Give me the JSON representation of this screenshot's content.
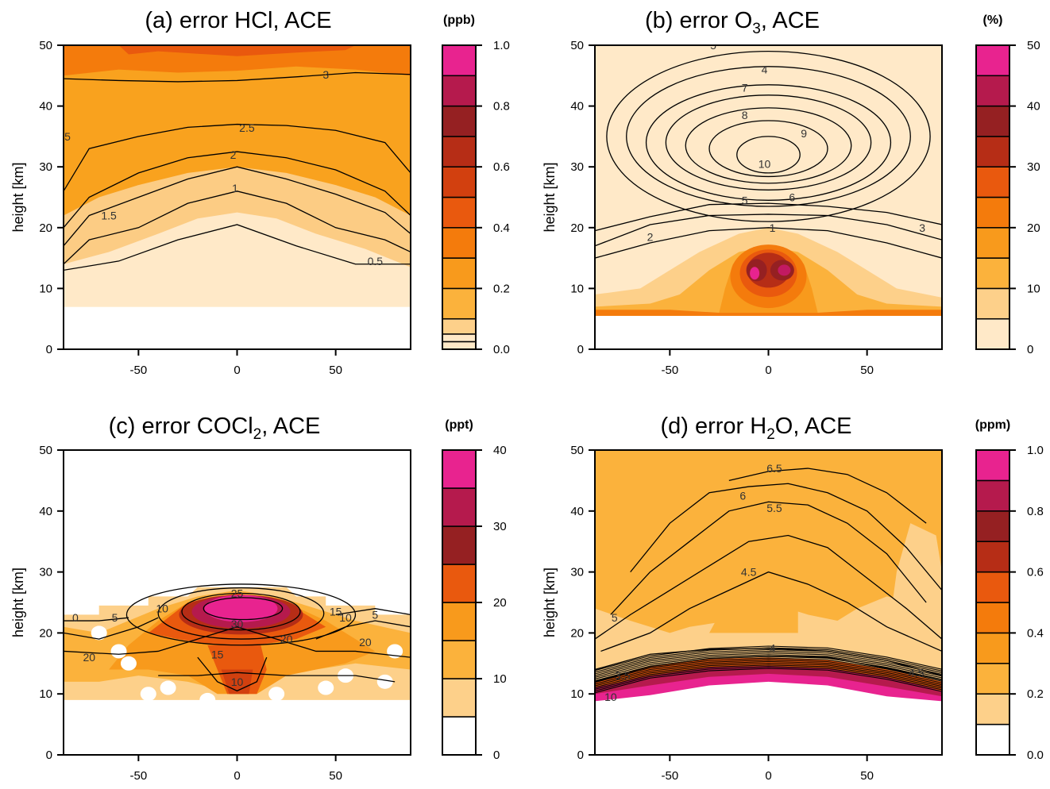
{
  "palette": {
    "seq10": [
      "#ffffff",
      "#fee7c6",
      "#fdd08a",
      "#fbb23c",
      "#f89a1c",
      "#f47b0c",
      "#e9590e",
      "#d2400f",
      "#b62d16",
      "#952022",
      "#b51a4d",
      "#e8238f"
    ],
    "pink": "#ec2a95",
    "magenta": "#c21a62",
    "maroon": "#8d1b24",
    "contour": "#000000"
  },
  "chart_data": [
    {
      "id": "a",
      "type": "heatmap",
      "title": "(a) error HCl, ACE",
      "title_html": [
        "(a) error HCl, ACE"
      ],
      "ylabel": "height [km]",
      "xlabel": "",
      "x_ticks": [
        -50,
        0,
        50
      ],
      "y_ticks": [
        0,
        10,
        20,
        30,
        40,
        50
      ],
      "xlim": [
        -88,
        88
      ],
      "ylim": [
        0,
        50
      ],
      "colorbar": {
        "unit": "(ppb)",
        "tick_labels": [
          "0.0",
          "0.2",
          "0.4",
          "0.6",
          "0.8",
          "1.0"
        ],
        "tick_values": [
          0,
          0.2,
          0.4,
          0.6,
          0.8,
          1.0
        ],
        "levels": [
          0,
          0.025,
          0.05,
          0.1,
          0.2,
          0.3,
          0.4,
          0.5,
          0.6,
          0.7,
          0.8,
          0.9,
          1.0
        ],
        "colors": [
          "#ffe9c8",
          "#ffe9c8",
          "#fdd08a",
          "#fbb23c",
          "#f89a1c",
          "#f47b0c",
          "#e9590e",
          "#d2400f",
          "#b62d16",
          "#952022",
          "#b51a4d",
          "#e8238f"
        ]
      },
      "contour_labels": [
        "3",
        "2.5",
        "2",
        "1",
        "1.5",
        "0.5",
        "5"
      ],
      "fields": [
        {
          "value": 0.05,
          "note": "low layer",
          "top": [
            [
              -88,
              7
            ],
            [
              -88,
              14
            ],
            [
              -60,
              17
            ],
            [
              -30,
              20
            ],
            [
              0,
              22
            ],
            [
              30,
              20
            ],
            [
              60,
              17
            ],
            [
              88,
              13
            ],
            [
              88,
              7
            ]
          ]
        },
        {
          "value": 0.15,
          "top_km": 27
        },
        {
          "value": 0.3,
          "top_km": 50
        },
        {
          "value": 0.4,
          "band": [
            45,
            50
          ]
        }
      ],
      "contours": [
        {
          "label": "3",
          "pts": [
            [
              -88,
              44.5
            ],
            [
              -60,
              44.2
            ],
            [
              -30,
              44.0
            ],
            [
              0,
              44.2
            ],
            [
              30,
              44.8
            ],
            [
              60,
              45.5
            ],
            [
              88,
              45.2
            ]
          ]
        },
        {
          "label": "2.5",
          "pts": [
            [
              -88,
              26
            ],
            [
              -75,
              33
            ],
            [
              -50,
              35
            ],
            [
              -25,
              36.5
            ],
            [
              0,
              37
            ],
            [
              25,
              36.8
            ],
            [
              50,
              36
            ],
            [
              75,
              34
            ],
            [
              88,
              29
            ]
          ]
        },
        {
          "label": "2",
          "pts": [
            [
              -88,
              20
            ],
            [
              -75,
              25
            ],
            [
              -50,
              29
            ],
            [
              -25,
              31.5
            ],
            [
              0,
              32.5
            ],
            [
              25,
              31.5
            ],
            [
              50,
              29.5
            ],
            [
              75,
              26
            ],
            [
              88,
              22
            ]
          ]
        },
        {
          "label": "1.5",
          "pts": [
            [
              -88,
              17
            ],
            [
              -75,
              22
            ],
            [
              -50,
              25
            ],
            [
              -25,
              28
            ],
            [
              0,
              30
            ],
            [
              25,
              28
            ],
            [
              50,
              25.5
            ],
            [
              75,
              22.5
            ],
            [
              88,
              19
            ]
          ]
        },
        {
          "label": "1",
          "pts": [
            [
              -88,
              14
            ],
            [
              -75,
              18
            ],
            [
              -50,
              20
            ],
            [
              -25,
              24
            ],
            [
              0,
              26
            ],
            [
              25,
              24
            ],
            [
              50,
              20
            ],
            [
              75,
              18
            ],
            [
              88,
              16
            ]
          ]
        },
        {
          "label": "0.5",
          "pts": [
            [
              -88,
              13
            ],
            [
              -60,
              14.5
            ],
            [
              -30,
              18
            ],
            [
              0,
              20.5
            ],
            [
              30,
              17
            ],
            [
              60,
              14
            ],
            [
              88,
              14
            ]
          ]
        }
      ]
    },
    {
      "id": "b",
      "type": "heatmap",
      "title": "(b) error O3, ACE",
      "title_html": [
        "(b) error O",
        "3",
        ", ACE"
      ],
      "ylabel": "height [km]",
      "xlabel": "",
      "x_ticks": [
        -50,
        0,
        50
      ],
      "y_ticks": [
        0,
        10,
        20,
        30,
        40,
        50
      ],
      "xlim": [
        -88,
        88
      ],
      "ylim": [
        0,
        50
      ],
      "colorbar": {
        "unit": "(%)",
        "tick_labels": [
          "0",
          "10",
          "20",
          "30",
          "40",
          "50"
        ],
        "tick_values": [
          0,
          10,
          20,
          30,
          40,
          50
        ],
        "levels": [
          0,
          5,
          10,
          15,
          20,
          25,
          30,
          35,
          40,
          45,
          50
        ],
        "colors": [
          "#ffe9c8",
          "#fdd08a",
          "#fbb23c",
          "#f89a1c",
          "#f47b0c",
          "#e9590e",
          "#b62d16",
          "#952022",
          "#b51a4d",
          "#e8238f"
        ]
      },
      "contour_labels": [
        "5",
        "4",
        "7",
        "8",
        "9",
        "10",
        "6",
        "5",
        "1",
        "2",
        "3"
      ],
      "contours": [
        {
          "label": "4",
          "ellipse": [
            0,
            35,
            82,
            14
          ]
        },
        {
          "label": "5",
          "ellipse": [
            0,
            35,
            72,
            11.5
          ]
        },
        {
          "label": "6",
          "ellipse": [
            0,
            34,
            62,
            9.5
          ]
        },
        {
          "label": "7",
          "ellipse": [
            0,
            34,
            52,
            7.8
          ]
        },
        {
          "label": "8",
          "ellipse": [
            0,
            33.5,
            42,
            6.2
          ]
        },
        {
          "label": "9",
          "ellipse": [
            0,
            33,
            30,
            4.6
          ]
        },
        {
          "label": "10",
          "ellipse": [
            0,
            32,
            16,
            3.0
          ]
        },
        {
          "label": "1",
          "pts": [
            [
              -88,
              15
            ],
            [
              -60,
              17.5
            ],
            [
              -30,
              19.5
            ],
            [
              0,
              20
            ],
            [
              30,
              19.5
            ],
            [
              60,
              17.5
            ],
            [
              88,
              15
            ]
          ]
        },
        {
          "label": "2",
          "pts": [
            [
              -88,
              17
            ],
            [
              -60,
              20.5
            ],
            [
              -30,
              22
            ],
            [
              0,
              22.2
            ],
            [
              30,
              22
            ],
            [
              60,
              20.5
            ],
            [
              88,
              18
            ]
          ]
        },
        {
          "label": "3",
          "pts": [
            [
              -88,
              19.5
            ],
            [
              -60,
              21.8
            ],
            [
              -30,
              23.8
            ],
            [
              0,
              24
            ],
            [
              30,
              23.5
            ],
            [
              60,
              22.5
            ],
            [
              88,
              20.5
            ]
          ]
        }
      ]
    },
    {
      "id": "c",
      "type": "heatmap",
      "title": "(c) error COCl2, ACE",
      "title_html": [
        "(c) error COCl",
        "2",
        ", ACE"
      ],
      "ylabel": "height [km]",
      "xlabel": "",
      "x_ticks": [
        -50,
        0,
        50
      ],
      "y_ticks": [
        0,
        10,
        20,
        30,
        40,
        50
      ],
      "xlim": [
        -88,
        88
      ],
      "ylim": [
        0,
        50
      ],
      "colorbar": {
        "unit": "(ppt)",
        "tick_labels": [
          "0",
          "10",
          "20",
          "30",
          "40"
        ],
        "tick_values": [
          0,
          10,
          20,
          30,
          40
        ],
        "levels": [
          0,
          5,
          10,
          15,
          20,
          25,
          30,
          35,
          40
        ],
        "colors": [
          "#ffffff",
          "#fdd08a",
          "#fbb23c",
          "#f89a1c",
          "#e9590e",
          "#952022",
          "#b51a4d",
          "#e8238f"
        ]
      },
      "contour_labels": [
        "25",
        "30",
        "10",
        "5",
        "0",
        "15",
        "10",
        "20",
        "20",
        "15",
        "10",
        "5",
        "20"
      ],
      "contours": [
        {
          "label": "25",
          "ellipse": [
            3,
            24,
            20,
            1.8
          ]
        },
        {
          "label": "30",
          "ellipse": [
            2,
            23.5,
            30,
            3.0
          ]
        },
        {
          "label": "15",
          "ellipse": [
            2,
            23.2,
            42,
            4.2
          ]
        },
        {
          "label": "10",
          "ellipse": [
            2,
            23,
            58,
            5.0
          ]
        }
      ]
    },
    {
      "id": "d",
      "type": "heatmap",
      "title": "(d) error H2O, ACE",
      "title_html": [
        "(d) error H",
        "2",
        "O, ACE"
      ],
      "ylabel": "height [km]",
      "xlabel": "",
      "x_ticks": [
        -50,
        0,
        50
      ],
      "y_ticks": [
        0,
        10,
        20,
        30,
        40,
        50
      ],
      "xlim": [
        -88,
        88
      ],
      "ylim": [
        0,
        50
      ],
      "colorbar": {
        "unit": "(ppm)",
        "tick_labels": [
          "0.0",
          "0.2",
          "0.4",
          "0.6",
          "0.8",
          "1.0"
        ],
        "tick_values": [
          0,
          0.2,
          0.4,
          0.6,
          0.8,
          1.0
        ],
        "levels": [
          0,
          0.1,
          0.2,
          0.3,
          0.4,
          0.5,
          0.6,
          0.7,
          0.8,
          0.9,
          1.0
        ],
        "colors": [
          "#ffffff",
          "#fdd08a",
          "#fbb23c",
          "#f89a1c",
          "#f47b0c",
          "#e9590e",
          "#b62d16",
          "#952022",
          "#b51a4d",
          "#e8238f"
        ]
      },
      "contour_labels": [
        "6.5",
        "6",
        "5.5",
        "4.5",
        "5",
        "4",
        "3.5",
        "4.5",
        "10"
      ],
      "contours": [
        {
          "label": "6.5",
          "pts": [
            [
              -20,
              45
            ],
            [
              0,
              46.5
            ],
            [
              20,
              47
            ],
            [
              40,
              46
            ],
            [
              60,
              43
            ],
            [
              80,
              38
            ]
          ]
        },
        {
          "label": "6",
          "pts": [
            [
              -70,
              30
            ],
            [
              -50,
              38
            ],
            [
              -30,
              43
            ],
            [
              -10,
              44
            ],
            [
              10,
              44.5
            ],
            [
              30,
              43
            ],
            [
              50,
              40
            ],
            [
              70,
              34
            ],
            [
              88,
              27
            ]
          ]
        },
        {
          "label": "5.5",
          "pts": [
            [
              -80,
              23
            ],
            [
              -60,
              30
            ],
            [
              -40,
              35
            ],
            [
              -20,
              40
            ],
            [
              0,
              41.5
            ],
            [
              20,
              41
            ],
            [
              40,
              38
            ],
            [
              60,
              33
            ],
            [
              80,
              25
            ]
          ]
        },
        {
          "label": "5",
          "pts": [
            [
              -88,
              19
            ],
            [
              -70,
              23
            ],
            [
              -50,
              27
            ],
            [
              -30,
              31
            ],
            [
              -10,
              35
            ],
            [
              10,
              36
            ],
            [
              30,
              34
            ],
            [
              50,
              29
            ],
            [
              70,
              24
            ],
            [
              88,
              19
            ]
          ]
        },
        {
          "label": "4.5",
          "pts": [
            [
              -85,
              17
            ],
            [
              -60,
              20
            ],
            [
              -40,
              24
            ],
            [
              -20,
              27
            ],
            [
              0,
              30
            ],
            [
              20,
              28
            ],
            [
              40,
              25
            ],
            [
              60,
              21
            ],
            [
              88,
              17
            ]
          ]
        },
        {
          "label": "4",
          "pts": [
            [
              -88,
              14
            ],
            [
              -60,
              16.5
            ],
            [
              -30,
              17.3
            ],
            [
              0,
              17.5
            ],
            [
              30,
              17
            ],
            [
              60,
              15.5
            ],
            [
              88,
              13
            ]
          ]
        },
        {
          "label": "3.5",
          "pts": [
            [
              -88,
              12
            ],
            [
              -60,
              14.5
            ],
            [
              -30,
              15.8
            ],
            [
              0,
              16.2
            ],
            [
              30,
              16
            ],
            [
              60,
              14.2
            ],
            [
              88,
              12.3
            ]
          ]
        }
      ]
    }
  ]
}
